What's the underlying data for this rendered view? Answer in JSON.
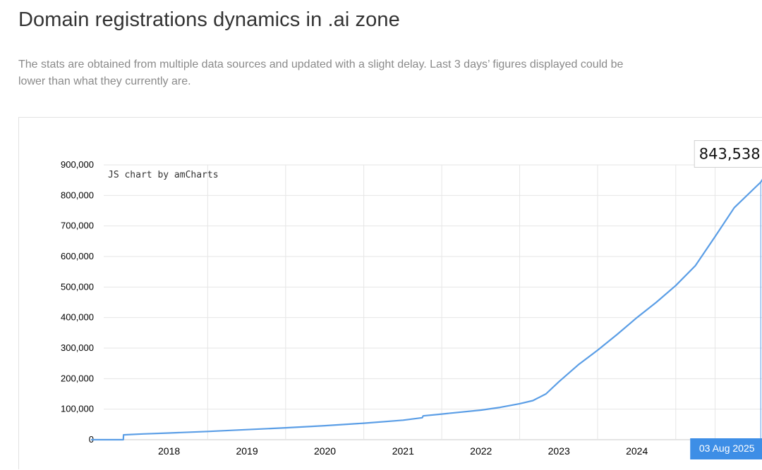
{
  "page": {
    "title": "Domain registrations dynamics in .ai zone",
    "subtitle": "The stats are obtained from multiple data sources and updated with a slight delay. Last 3 days’ figures displayed could be lower than what they currently are."
  },
  "chart_credit": "JS chart by amCharts",
  "tooltip": {
    "value": "843,538",
    "date_label": "03 Aug 2025"
  },
  "colors": {
    "line": "#5b9ee6",
    "grid": "#e6e6e6",
    "cursor_bg": "#3d8ee6"
  },
  "chart_data": {
    "type": "line",
    "title": "",
    "xlabel": "",
    "ylabel": "",
    "ylim": [
      0,
      900000
    ],
    "yticks": [
      "0",
      "100,000",
      "200,000",
      "300,000",
      "400,000",
      "500,000",
      "600,000",
      "700,000",
      "800,000",
      "900,000"
    ],
    "xticks": [
      "2018",
      "2019",
      "2020",
      "2021",
      "2022",
      "2023",
      "2024"
    ],
    "grid": true,
    "series": [
      {
        "values": [
          {
            "x": "2017-01-01",
            "y": 0
          },
          {
            "x": "2017-06-01",
            "y": 0
          },
          {
            "x": "2017-06-02",
            "y": 16000
          },
          {
            "x": "2017-09-01",
            "y": 19000
          },
          {
            "x": "2018-01-01",
            "y": 22000
          },
          {
            "x": "2018-07-01",
            "y": 27000
          },
          {
            "x": "2019-01-01",
            "y": 33000
          },
          {
            "x": "2019-07-01",
            "y": 39000
          },
          {
            "x": "2020-01-01",
            "y": 46000
          },
          {
            "x": "2020-07-01",
            "y": 54000
          },
          {
            "x": "2021-01-01",
            "y": 64000
          },
          {
            "x": "2021-04-01",
            "y": 72000
          },
          {
            "x": "2021-04-05",
            "y": 78000
          },
          {
            "x": "2021-07-01",
            "y": 84000
          },
          {
            "x": "2022-01-01",
            "y": 97000
          },
          {
            "x": "2022-04-01",
            "y": 106000
          },
          {
            "x": "2022-07-01",
            "y": 118000
          },
          {
            "x": "2022-09-01",
            "y": 128000
          },
          {
            "x": "2022-11-01",
            "y": 150000
          },
          {
            "x": "2023-01-01",
            "y": 190000
          },
          {
            "x": "2023-04-01",
            "y": 245000
          },
          {
            "x": "2023-07-01",
            "y": 293000
          },
          {
            "x": "2023-10-01",
            "y": 345000
          },
          {
            "x": "2024-01-01",
            "y": 400000
          },
          {
            "x": "2024-04-01",
            "y": 450000
          },
          {
            "x": "2024-07-01",
            "y": 505000
          },
          {
            "x": "2024-10-01",
            "y": 570000
          },
          {
            "x": "2025-01-01",
            "y": 665000
          },
          {
            "x": "2025-04-01",
            "y": 760000
          },
          {
            "x": "2025-08-03",
            "y": 843538
          },
          {
            "x": "2025-09-01",
            "y": 875000
          }
        ]
      }
    ]
  }
}
